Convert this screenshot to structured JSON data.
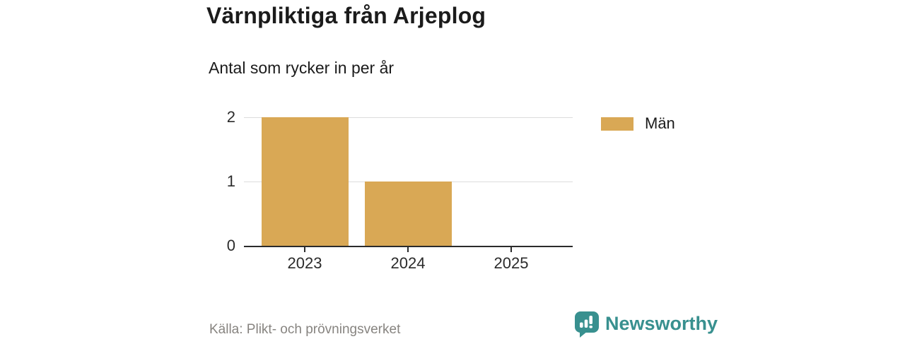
{
  "header": {
    "title": "Värnpliktiga från Arjeplog",
    "subtitle": "Antal som rycker in per år"
  },
  "chart_data": {
    "type": "bar",
    "categories": [
      "2023",
      "2024",
      "2025"
    ],
    "series": [
      {
        "name": "Män",
        "color": "#d9a855",
        "values": [
          2,
          1,
          0
        ]
      }
    ],
    "title": "Värnpliktiga från Arjeplog",
    "subtitle": "Antal som rycker in per år",
    "xlabel": "",
    "ylabel": "",
    "ylim": [
      0,
      2
    ],
    "yticks": [
      0,
      1,
      2
    ],
    "grid": true,
    "gridline_color": "#dcdcdc",
    "axis_color": "#2b2b2b",
    "legend_position": "right"
  },
  "legend": {
    "items": [
      {
        "label": "Män",
        "color": "#d9a855"
      }
    ]
  },
  "footer": {
    "source": "Källa: Plikt- och prövningsverket",
    "brand": "Newsworthy",
    "brand_color": "#38908f"
  }
}
